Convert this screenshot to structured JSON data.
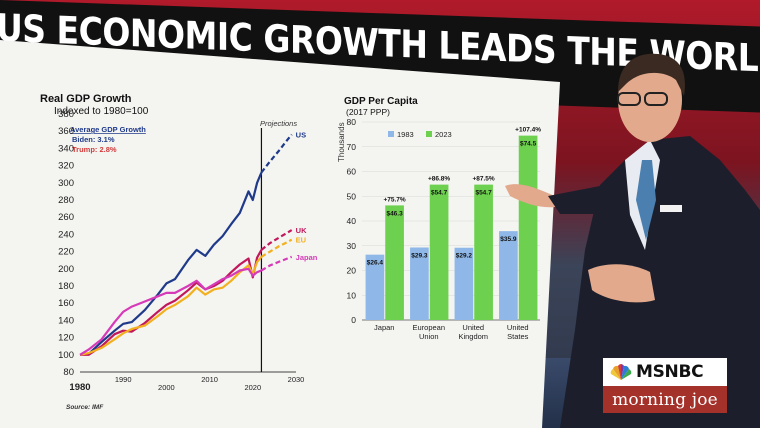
{
  "headline": "US ECONOMIC GROWTH LEADS THE WORLD",
  "logo": {
    "network": "MSNBC",
    "show": "morning joe"
  },
  "chart_data": [
    {
      "type": "line",
      "title": "Real GDP Growth",
      "subtitle": "Indexed to 1980=100",
      "source": "Source: IMF",
      "annotation_title": "Average GDP Growth",
      "annotations": [
        "Biden: 3.1%",
        "Trump: 2.8%"
      ],
      "projections_label": "Projections",
      "x_ticks": [
        "1980",
        "1990",
        "2000",
        "2010",
        "2020",
        "2030"
      ],
      "y_ticks": [
        "80",
        "100",
        "120",
        "140",
        "160",
        "180",
        "200",
        "220",
        "240",
        "260",
        "280",
        "300",
        "320",
        "340",
        "360",
        "380"
      ],
      "ylim": [
        80,
        380
      ],
      "xlim": [
        1980,
        2030
      ],
      "projection_start": 2022,
      "series": [
        {
          "name": "US",
          "color": "#1f3a8a",
          "x": [
            1980,
            1982,
            1985,
            1988,
            1990,
            1992,
            1995,
            1998,
            2000,
            2002,
            2005,
            2007,
            2009,
            2011,
            2013,
            2015,
            2017,
            2019,
            2020,
            2021,
            2022,
            2024,
            2026,
            2028,
            2029
          ],
          "y": [
            100,
            101,
            115,
            128,
            136,
            138,
            152,
            170,
            183,
            188,
            210,
            222,
            215,
            228,
            238,
            252,
            265,
            290,
            280,
            300,
            312,
            325,
            337,
            350,
            356
          ]
        },
        {
          "name": "UK",
          "color": "#c2185b",
          "x": [
            1980,
            1982,
            1985,
            1988,
            1990,
            1992,
            1995,
            1998,
            2000,
            2002,
            2005,
            2007,
            2009,
            2011,
            2013,
            2015,
            2017,
            2019,
            2020,
            2021,
            2022,
            2024,
            2026,
            2028,
            2029
          ],
          "y": [
            100,
            100,
            110,
            124,
            128,
            127,
            137,
            150,
            158,
            163,
            175,
            184,
            176,
            180,
            186,
            196,
            205,
            212,
            190,
            213,
            222,
            230,
            236,
            242,
            245
          ]
        },
        {
          "name": "EU",
          "color": "#f2b01e",
          "x": [
            1980,
            1982,
            1985,
            1988,
            1990,
            1992,
            1995,
            1998,
            2000,
            2002,
            2005,
            2007,
            2009,
            2011,
            2013,
            2015,
            2017,
            2019,
            2020,
            2021,
            2022,
            2024,
            2026,
            2028,
            2029
          ],
          "y": [
            100,
            102,
            108,
            118,
            125,
            130,
            134,
            145,
            153,
            158,
            168,
            178,
            170,
            176,
            178,
            186,
            196,
            204,
            194,
            208,
            214,
            220,
            226,
            231,
            234
          ]
        },
        {
          "name": "Japan",
          "color": "#d63ab8",
          "x": [
            1980,
            1982,
            1985,
            1988,
            1990,
            1992,
            1995,
            1998,
            2000,
            2002,
            2005,
            2007,
            2009,
            2011,
            2013,
            2015,
            2017,
            2019,
            2020,
            2021,
            2022,
            2024,
            2026,
            2028,
            2029
          ],
          "y": [
            100,
            106,
            118,
            138,
            150,
            156,
            162,
            168,
            172,
            172,
            180,
            186,
            176,
            182,
            188,
            192,
            198,
            200,
            192,
            196,
            198,
            204,
            208,
            212,
            214
          ]
        }
      ]
    },
    {
      "type": "bar",
      "title": "GDP Per Capita",
      "subtitle": "(2017 PPP)",
      "ylabel": "Thousands",
      "ylim": [
        0,
        80
      ],
      "y_ticks": [
        "0",
        "10",
        "20",
        "30",
        "40",
        "50",
        "60",
        "70",
        "80"
      ],
      "categories": [
        "Japan",
        "European Union",
        "United Kingdom",
        "United States"
      ],
      "category_lines": [
        [
          "Japan"
        ],
        [
          "European",
          "Union"
        ],
        [
          "United",
          "Kingdom"
        ],
        [
          "United",
          "States"
        ]
      ],
      "series": [
        {
          "name": "1983",
          "color": "#8fb8e8",
          "values": [
            26.4,
            29.3,
            29.2,
            35.9
          ],
          "labels": [
            "$26.4",
            "$29.3",
            "$29.2",
            "$35.9"
          ]
        },
        {
          "name": "2023",
          "color": "#6ed04f",
          "values": [
            46.3,
            54.7,
            54.7,
            74.5
          ],
          "labels": [
            "$46.3",
            "$54.7",
            "$54.7",
            "$74.5"
          ]
        }
      ],
      "growth_labels": [
        "+75.7%",
        "+86.8%",
        "+87.5%",
        "+107.4%"
      ]
    }
  ]
}
